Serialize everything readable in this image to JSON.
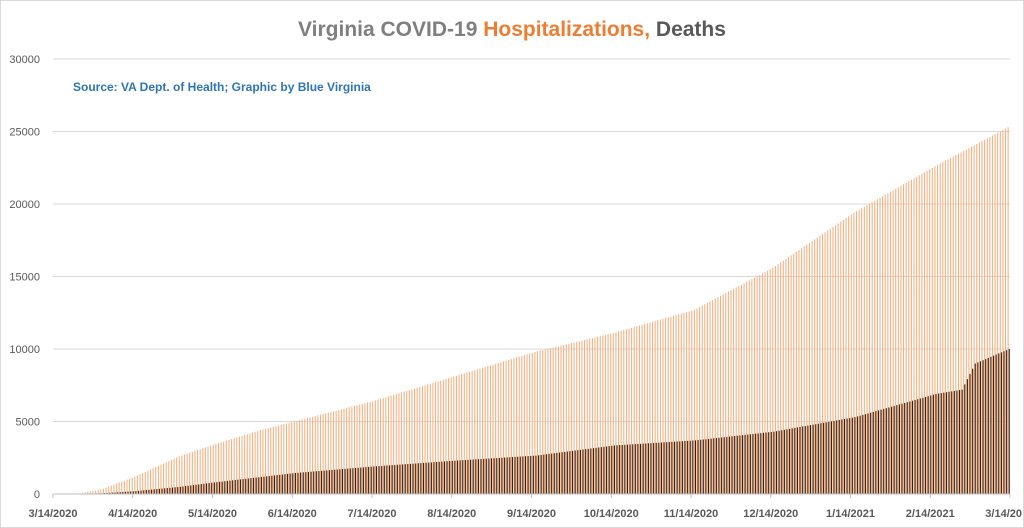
{
  "chart_data": {
    "type": "bar",
    "title_parts": [
      {
        "text": "Virginia COVID-19 ",
        "color": "#7f7f7f"
      },
      {
        "text": "Hospitalizations, ",
        "color": "#ed7d31"
      },
      {
        "text": "Deaths",
        "color": "#595959"
      }
    ],
    "subtitle": "Source: VA Dept. of Health; Graphic by Blue Virginia",
    "subtitle_color": "#2e75b6",
    "xlabel": "",
    "ylabel": "",
    "ylim": [
      0,
      30000
    ],
    "y_ticks": [
      "0",
      "5000",
      "10000",
      "15000",
      "20000",
      "25000",
      "30000"
    ],
    "x_tick_labels": [
      "3/14/2020",
      "4/14/2020",
      "5/14/2020",
      "6/14/2020",
      "7/14/2020",
      "8/14/2020",
      "9/14/2020",
      "10/14/2020",
      "11/14/2020",
      "12/14/2020",
      "1/14/2021",
      "2/14/2021",
      "3/14/20"
    ],
    "grid": true,
    "legend": "none",
    "series": [
      {
        "key": "hospitalizations",
        "color": "#f4b183",
        "anchors": [
          [
            "2020-03-14",
            0
          ],
          [
            "2020-03-24",
            50
          ],
          [
            "2020-04-01",
            300
          ],
          [
            "2020-04-14",
            1200
          ],
          [
            "2020-05-01",
            2600
          ],
          [
            "2020-05-14",
            3400
          ],
          [
            "2020-06-01",
            4400
          ],
          [
            "2020-06-14",
            5000
          ],
          [
            "2020-07-14",
            6400
          ],
          [
            "2020-08-14",
            8100
          ],
          [
            "2020-09-14",
            9800
          ],
          [
            "2020-10-14",
            11100
          ],
          [
            "2020-11-14",
            12700
          ],
          [
            "2020-12-14",
            15600
          ],
          [
            "2021-01-14",
            19400
          ],
          [
            "2021-02-14",
            22600
          ],
          [
            "2021-03-14",
            25300
          ]
        ]
      },
      {
        "key": "deaths",
        "color": "#3a2010",
        "anchors": [
          [
            "2020-03-14",
            0
          ],
          [
            "2020-04-01",
            50
          ],
          [
            "2020-04-14",
            200
          ],
          [
            "2020-05-01",
            500
          ],
          [
            "2020-05-14",
            800
          ],
          [
            "2020-06-14",
            1450
          ],
          [
            "2020-07-14",
            1900
          ],
          [
            "2020-08-14",
            2300
          ],
          [
            "2020-09-14",
            2650
          ],
          [
            "2020-10-14",
            3350
          ],
          [
            "2020-11-14",
            3700
          ],
          [
            "2020-12-14",
            4300
          ],
          [
            "2021-01-14",
            5300
          ],
          [
            "2021-02-14",
            6900
          ],
          [
            "2021-02-24",
            7200
          ],
          [
            "2021-03-01",
            9000
          ],
          [
            "2021-03-14",
            10000
          ]
        ]
      }
    ]
  }
}
